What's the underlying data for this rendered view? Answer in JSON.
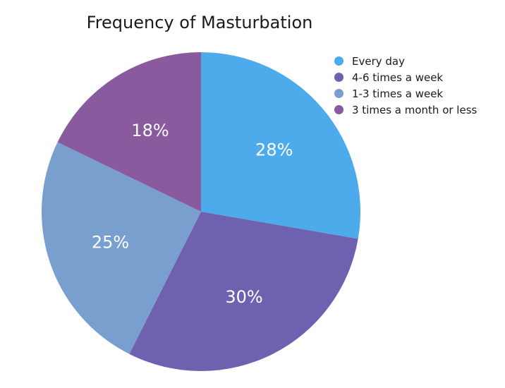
{
  "chart_data": {
    "type": "pie",
    "title": "Frequency of Masturbation",
    "categories": [
      "Every day",
      "4-6 times a week",
      "1-3 times a week",
      "3 times a month or less"
    ],
    "values": [
      28,
      30,
      25,
      18
    ],
    "value_labels": [
      "28%",
      "30%",
      "25%",
      "18%"
    ],
    "colors": [
      "#4dabeb",
      "#6e62b0",
      "#789fce",
      "#8a5a9e"
    ],
    "start_angle": "12 o'clock",
    "direction": "clockwise",
    "legend_position": "top-right"
  }
}
